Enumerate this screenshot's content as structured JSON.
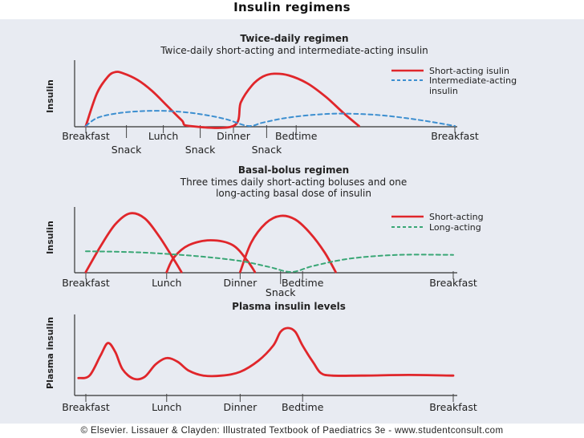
{
  "page_title": "Insulin regimens",
  "footer": "© Elsevier. Lissauer & Clayden: Illustrated Textbook of Paediatrics 3e - www.studentconsult.com",
  "colors": {
    "short": "#e0262b",
    "intermediate": "#3d8fd0",
    "long": "#3aa776",
    "plasma": "#e0262b",
    "axis": "#333333",
    "panel": "#e8ebf2"
  },
  "chart_data": [
    {
      "type": "line",
      "title": "Twice-daily regimen",
      "subtitle": "Twice-daily short-acting and intermediate-acting insulin",
      "ylabel": "Insulin",
      "xlim": [
        0,
        100
      ],
      "x_ticks": [
        {
          "x": 0,
          "label": "Breakfast",
          "row": 1
        },
        {
          "x": 11,
          "label": "Snack",
          "row": 2
        },
        {
          "x": 21,
          "label": "Lunch",
          "row": 1
        },
        {
          "x": 31,
          "label": "Snack",
          "row": 2
        },
        {
          "x": 40,
          "label": "Dinner",
          "row": 1
        },
        {
          "x": 49,
          "label": "Snack",
          "row": 2
        },
        {
          "x": 57,
          "label": "Bedtime",
          "row": 1
        },
        {
          "x": 100,
          "label": "Breakfast",
          "row": 1
        }
      ],
      "series": [
        {
          "name": "Short-acting isulin",
          "style": "solid",
          "color": "#e0262b",
          "points": [
            [
              0,
              0
            ],
            [
              3,
              58
            ],
            [
              6,
              88
            ],
            [
              8,
              96
            ],
            [
              10,
              94
            ],
            [
              14,
              82
            ],
            [
              18,
              62
            ],
            [
              22,
              36
            ],
            [
              26,
              10
            ],
            [
              28,
              0
            ],
            [
              40,
              0
            ],
            [
              42,
              42
            ],
            [
              45,
              72
            ],
            [
              48,
              88
            ],
            [
              51,
              93
            ],
            [
              55,
              90
            ],
            [
              60,
              76
            ],
            [
              65,
              52
            ],
            [
              70,
              22
            ],
            [
              74,
              0
            ]
          ]
        },
        {
          "name": "Intermediate-acting insulin",
          "style": "dashed",
          "color": "#3d8fd0",
          "points": [
            [
              0,
              0
            ],
            [
              3,
              14
            ],
            [
              8,
              22
            ],
            [
              14,
              26
            ],
            [
              20,
              27
            ],
            [
              26,
              25
            ],
            [
              32,
              20
            ],
            [
              38,
              12
            ],
            [
              44,
              0
            ],
            [
              48,
              6
            ],
            [
              54,
              14
            ],
            [
              62,
              20
            ],
            [
              70,
              22
            ],
            [
              80,
              19
            ],
            [
              90,
              11
            ],
            [
              100,
              0
            ]
          ]
        }
      ],
      "legend": "top-right"
    },
    {
      "type": "line",
      "title": "Basal-bolus regimen",
      "subtitle": "Three times daily short-acting boluses and one long-acting basal dose of insulin",
      "ylabel": "Insulin",
      "xlim": [
        0,
        100
      ],
      "x_ticks": [
        {
          "x": 0,
          "label": "Breakfast",
          "row": 1
        },
        {
          "x": 22,
          "label": "Lunch",
          "row": 1
        },
        {
          "x": 42,
          "label": "Dinner",
          "row": 1
        },
        {
          "x": 53,
          "label": "Snack",
          "row": 2
        },
        {
          "x": 59,
          "label": "Bedtime",
          "row": 1
        },
        {
          "x": 100,
          "label": "Breakfast",
          "row": 1
        }
      ],
      "series": [
        {
          "name": "Short-acting",
          "style": "solid",
          "color": "#e0262b",
          "points": [
            [
              0,
              0
            ],
            [
              4,
              42
            ],
            [
              8,
              78
            ],
            [
              12,
              96
            ],
            [
              16,
              88
            ],
            [
              20,
              58
            ],
            [
              24,
              20
            ],
            [
              26,
              0
            ],
            [
              22,
              0
            ],
            [
              24,
              24
            ],
            [
              28,
              44
            ],
            [
              34,
              52
            ],
            [
              40,
              44
            ],
            [
              44,
              18
            ],
            [
              46,
              0
            ],
            [
              42,
              0
            ],
            [
              45,
              48
            ],
            [
              49,
              80
            ],
            [
              53,
              92
            ],
            [
              57,
              86
            ],
            [
              61,
              64
            ],
            [
              65,
              32
            ],
            [
              68,
              0
            ]
          ]
        },
        {
          "name": "Long-acting",
          "style": "dashed",
          "color": "#3aa776",
          "points": [
            [
              0,
              34
            ],
            [
              15,
              32
            ],
            [
              30,
              26
            ],
            [
              42,
              18
            ],
            [
              50,
              8
            ],
            [
              56,
              0
            ],
            [
              62,
              10
            ],
            [
              72,
              22
            ],
            [
              85,
              28
            ],
            [
              100,
              28
            ]
          ]
        }
      ],
      "legend": "top-right"
    },
    {
      "type": "line",
      "title": "Plasma insulin levels",
      "ylabel": "Plasma insulin",
      "xlim": [
        0,
        100
      ],
      "x_ticks": [
        {
          "x": 0,
          "label": "Breakfast",
          "row": 1
        },
        {
          "x": 22,
          "label": "Lunch",
          "row": 1
        },
        {
          "x": 42,
          "label": "Dinner",
          "row": 1
        },
        {
          "x": 59,
          "label": "Bedtime",
          "row": 1
        },
        {
          "x": 100,
          "label": "Breakfast",
          "row": 1
        }
      ],
      "series": [
        {
          "name": "",
          "style": "solid",
          "color": "#e0262b",
          "points": [
            [
              -2,
              6
            ],
            [
              1,
              10
            ],
            [
              4,
              42
            ],
            [
              6,
              62
            ],
            [
              8,
              48
            ],
            [
              10,
              20
            ],
            [
              13,
              5
            ],
            [
              16,
              8
            ],
            [
              19,
              28
            ],
            [
              22,
              38
            ],
            [
              25,
              32
            ],
            [
              28,
              18
            ],
            [
              32,
              10
            ],
            [
              37,
              10
            ],
            [
              42,
              16
            ],
            [
              47,
              34
            ],
            [
              51,
              58
            ],
            [
              53,
              80
            ],
            [
              55,
              86
            ],
            [
              57,
              80
            ],
            [
              59,
              58
            ],
            [
              62,
              30
            ],
            [
              64,
              14
            ],
            [
              67,
              10
            ],
            [
              75,
              10
            ],
            [
              88,
              11
            ],
            [
              100,
              10
            ]
          ]
        }
      ]
    }
  ]
}
